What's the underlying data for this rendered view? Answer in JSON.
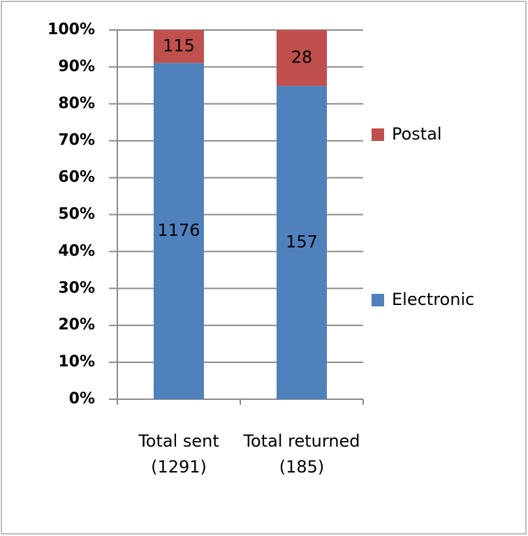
{
  "chart_data": {
    "type": "bar",
    "stacking": "percent",
    "categories": [
      "Total sent\n(1291)",
      "Total returned\n(185)"
    ],
    "series": [
      {
        "name": "Electronic",
        "color": "#4f81bd",
        "values": [
          1176,
          157
        ]
      },
      {
        "name": "Postal",
        "color": "#c0504d",
        "values": [
          115,
          28
        ]
      }
    ],
    "ylim": [
      0,
      100
    ],
    "yticks": [
      {
        "value": 0,
        "label": "0%"
      },
      {
        "value": 10,
        "label": "10%"
      },
      {
        "value": 20,
        "label": "20%"
      },
      {
        "value": 30,
        "label": "30%"
      },
      {
        "value": 40,
        "label": "40%"
      },
      {
        "value": 50,
        "label": "50%"
      },
      {
        "value": 60,
        "label": "60%"
      },
      {
        "value": 70,
        "label": "70%"
      },
      {
        "value": 80,
        "label": "80%"
      },
      {
        "value": 90,
        "label": "90%"
      },
      {
        "value": 100,
        "label": "100%"
      }
    ],
    "grid": true,
    "legend": "right"
  }
}
